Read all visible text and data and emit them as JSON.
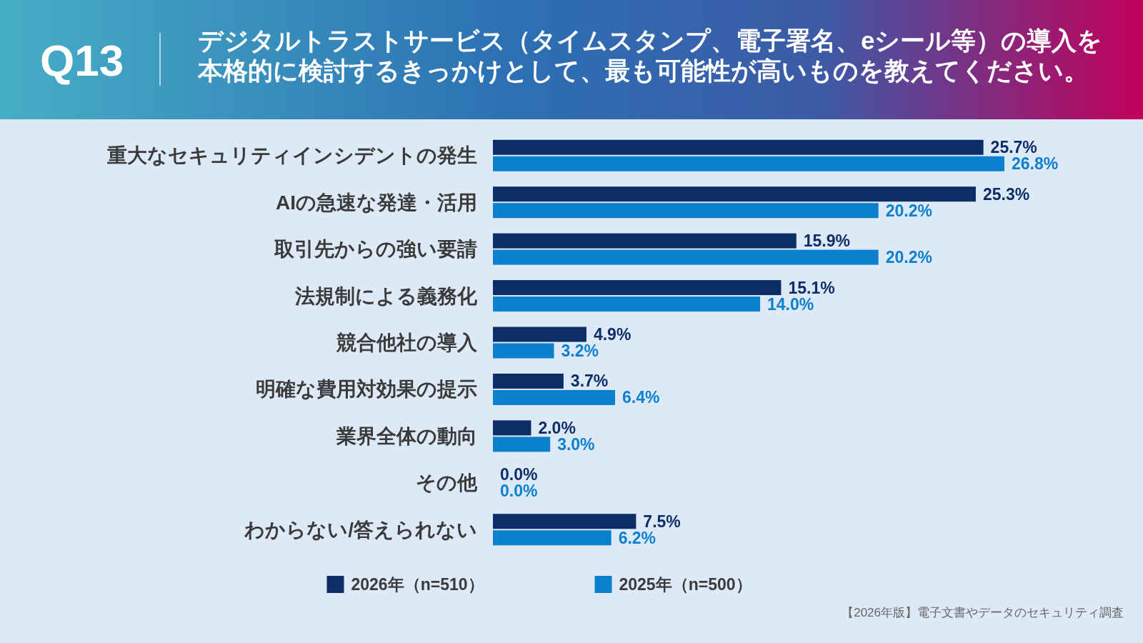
{
  "chart_data": {
    "type": "bar",
    "orientation": "horizontal",
    "title": "Q13",
    "subtitle": "デジタルトラストサービス（タイムスタンプ、電子署名、eシール等）の導入を本格的に検討するきっかけとして、最も可能性が高いものを教えてください。",
    "categories": [
      "重大なセキュリティインシデントの発生",
      "AIの急速な発達・活用",
      "取引先からの強い要請",
      "法規制による義務化",
      "競合他社の導入",
      "明確な費用対効果の提示",
      "業界全体の動向",
      "その他",
      "わからない/答えられない"
    ],
    "series": [
      {
        "name": "2026年（n=510）",
        "color": "#0d2d66",
        "values": [
          25.7,
          25.3,
          15.9,
          15.1,
          4.9,
          3.7,
          2.0,
          0.0,
          7.5
        ],
        "value_labels": [
          "25.7%",
          "25.3%",
          "15.9%",
          "15.1%",
          "4.9%",
          "3.7%",
          "2.0%",
          "0.0%",
          "7.5%"
        ]
      },
      {
        "name": "2025年（n=500）",
        "color": "#0a80cf",
        "values": [
          26.8,
          20.2,
          20.2,
          14.0,
          3.2,
          6.4,
          3.0,
          0.0,
          6.2
        ],
        "value_labels": [
          "26.8%",
          "20.2%",
          "20.2%",
          "14.0%",
          "3.2%",
          "6.4%",
          "3.0%",
          "0.0%",
          "6.2%"
        ]
      }
    ],
    "legend": "bottom",
    "tick_labels": "y",
    "annotations": [
      "【2026年版】電子文書やデータのセキュリティ調査"
    ]
  }
}
